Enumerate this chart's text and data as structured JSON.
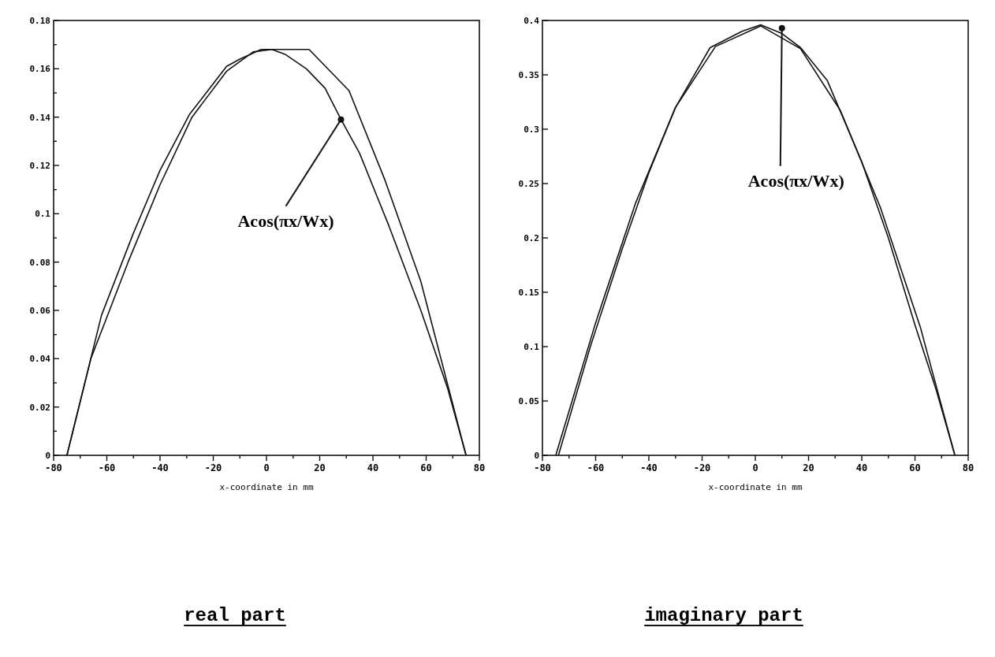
{
  "chart_data": [
    {
      "type": "line",
      "title": "real part",
      "xlabel": "x-coordinate in mm",
      "xlim": [
        -80,
        80
      ],
      "ylim": [
        0,
        0.18
      ],
      "xticks": [
        -80,
        {
          "value": -70,
          "label": null
        },
        -60,
        {
          "value": -50,
          "label": null
        },
        -40,
        {
          "value": -30,
          "label": null
        },
        -20,
        {
          "value": -10,
          "label": null
        },
        0,
        {
          "value": 10,
          "label": null
        },
        20,
        {
          "value": 30,
          "label": null
        },
        40,
        {
          "value": 50,
          "label": null
        },
        60,
        {
          "value": 70,
          "label": null
        },
        80
      ],
      "yticks": [
        0,
        {
          "value": 0.01,
          "label": null
        },
        0.02,
        {
          "value": 0.03,
          "label": null
        },
        0.04,
        {
          "value": 0.05,
          "label": null
        },
        0.06,
        {
          "value": 0.07,
          "label": null
        },
        0.08,
        {
          "value": 0.09,
          "label": null
        },
        0.1,
        {
          "value": 0.11,
          "label": null
        },
        0.12,
        {
          "value": 0.13,
          "label": null
        },
        0.14,
        {
          "value": 0.15,
          "label": null
        },
        0.16,
        {
          "value": 0.17,
          "label": null
        },
        0.18
      ],
      "grid": false,
      "marker": "none",
      "line_style": "solid",
      "series": [
        {
          "color": "#111111",
          "x": [
            -75,
            -66,
            -52,
            -40,
            -28,
            -15,
            -5,
            2,
            7,
            15,
            22,
            28,
            35,
            46,
            58,
            68,
            75
          ],
          "values": [
            0,
            0.04,
            0.08,
            0.112,
            0.14,
            0.159,
            0.167,
            0.168,
            0.166,
            0.16,
            0.152,
            0.139,
            0.125,
            0.095,
            0.06,
            0.028,
            0
          ]
        },
        {
          "color": "#111111",
          "x": [
            -75,
            -62,
            -50,
            -40,
            -29,
            -15,
            -10,
            -2,
            16,
            31,
            44.5,
            58,
            75
          ],
          "values": [
            0,
            0.058,
            0.092,
            0.118,
            0.141,
            0.161,
            0.164,
            0.168,
            0.168,
            0.151,
            0.114,
            0.072,
            0
          ]
        }
      ],
      "annotations": [
        {
          "text": "Acos(πx/Wx)",
          "x": 28,
          "y": 0.139
        }
      ]
    },
    {
      "type": "line",
      "title": "imaginary part",
      "xlabel": "x-coordinate in mm",
      "xlim": [
        -80,
        80
      ],
      "ylim": [
        0,
        0.4
      ],
      "xticks": [
        -80,
        {
          "value": -70,
          "label": null
        },
        -60,
        {
          "value": -50,
          "label": null
        },
        -40,
        {
          "value": -30,
          "label": null
        },
        -20,
        {
          "value": -10,
          "label": null
        },
        0,
        {
          "value": 10,
          "label": null
        },
        20,
        {
          "value": 30,
          "label": null
        },
        40,
        {
          "value": 50,
          "label": null
        },
        60,
        {
          "value": 70,
          "label": null
        },
        80
      ],
      "yticks": [
        0,
        0.05,
        0.1,
        0.15,
        0.2,
        0.25,
        0.3,
        0.35,
        0.4
      ],
      "grid": false,
      "marker": "none",
      "line_style": "solid",
      "series": [
        {
          "color": "#111111",
          "x": [
            -75,
            -60,
            -45,
            -30,
            -15,
            2,
            17,
            32,
            47,
            62,
            75
          ],
          "values": [
            0,
            0.122,
            0.232,
            0.32,
            0.376,
            0.395,
            0.374,
            0.317,
            0.228,
            0.118,
            0
          ]
        },
        {
          "color": "#111111",
          "x": [
            -74,
            -62,
            -50,
            -40,
            -30,
            -17,
            -5,
            2,
            10,
            17,
            27,
            40,
            50,
            60,
            68,
            75
          ],
          "values": [
            0,
            0.1,
            0.19,
            0.26,
            0.32,
            0.375,
            0.39,
            0.396,
            0.388,
            0.375,
            0.345,
            0.27,
            0.2,
            0.12,
            0.06,
            0
          ]
        }
      ],
      "annotations": [
        {
          "text": "Acos(πx/Wx)",
          "x": 10,
          "y": 0.393
        }
      ]
    }
  ]
}
